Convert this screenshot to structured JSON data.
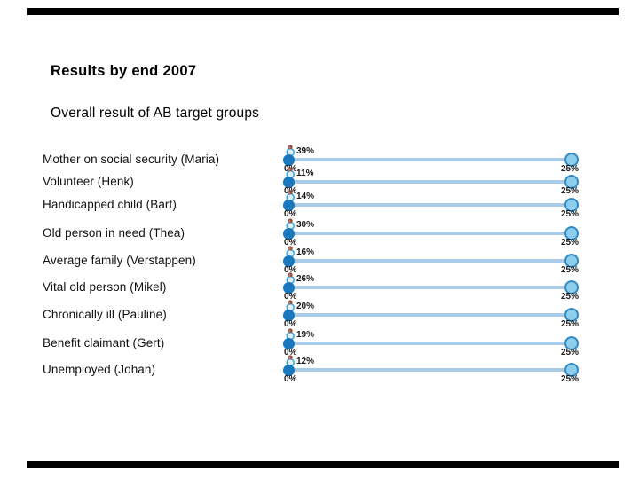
{
  "slide": {
    "title": "Results by end 2007",
    "subtitle": "Overall result of AB target groups"
  },
  "chart_data": {
    "type": "bar",
    "title": "Overall result of AB target groups",
    "orientation": "horizontal-slider-scales",
    "categories": [
      "Mother on social security (Maria)",
      "Volunteer (Henk)",
      "Handicapped child (Bart)",
      "Old person in need (Thea)",
      "Average family (Verstappen)",
      "Vital old person (Mikel)",
      "Chronically ill (Pauline)",
      "Benefit claimant (Gert)",
      "Unemployed (Johan)"
    ],
    "values": [
      39,
      11,
      14,
      30,
      16,
      26,
      20,
      19,
      12
    ],
    "value_labels": [
      "39%",
      "11%",
      "14%",
      "30%",
      "16%",
      "26%",
      "20%",
      "19%",
      "12%"
    ],
    "axis_min_label": "0%",
    "axis_max_label": "25%",
    "xlim": [
      0,
      25
    ],
    "marker_icon": "person-icon",
    "marker_positions_percent": [
      0,
      0,
      0,
      0,
      0,
      0,
      0,
      0,
      0
    ],
    "grid": "off",
    "legend": "none"
  },
  "colors": {
    "track": "#A9CCE9",
    "thumb": "#1879BE",
    "end_marker_fill": "#8ECDEC",
    "end_marker_border": "#2E8BC8",
    "person_head": "#9A4F3F",
    "person_body_stroke": "#47A7DC",
    "person_body_fill": "#DFF1FB",
    "rule_line": "#000000",
    "text": "#111111"
  }
}
